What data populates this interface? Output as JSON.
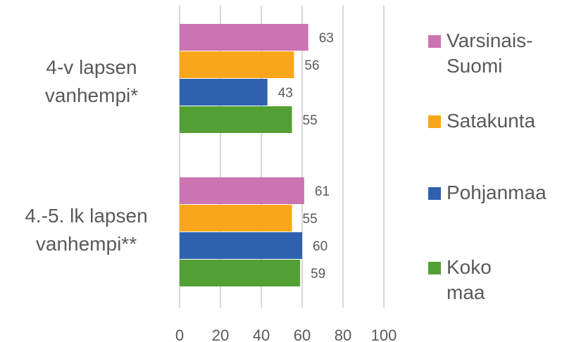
{
  "chart_data": {
    "type": "bar",
    "orientation": "horizontal",
    "categories": [
      "4-v lapsen\nvanhempi*",
      "4.-5. lk lapsen\nvanhempi**"
    ],
    "series": [
      {
        "name": "Varsinais-\nSuomi",
        "color": "#cc73b1",
        "values": [
          63,
          61
        ]
      },
      {
        "name": "Satakunta",
        "color": "#faa61a",
        "values": [
          56,
          55
        ]
      },
      {
        "name": "Pohjanmaa",
        "color": "#2e62ae",
        "values": [
          43,
          60
        ]
      },
      {
        "name": "Koko maa",
        "color": "#52a033",
        "values": [
          55,
          59
        ]
      }
    ],
    "xlim": [
      0,
      100
    ],
    "xticks": [
      "0",
      "20",
      "40",
      "60",
      "80",
      "100"
    ],
    "grid": true,
    "legend": "right"
  }
}
